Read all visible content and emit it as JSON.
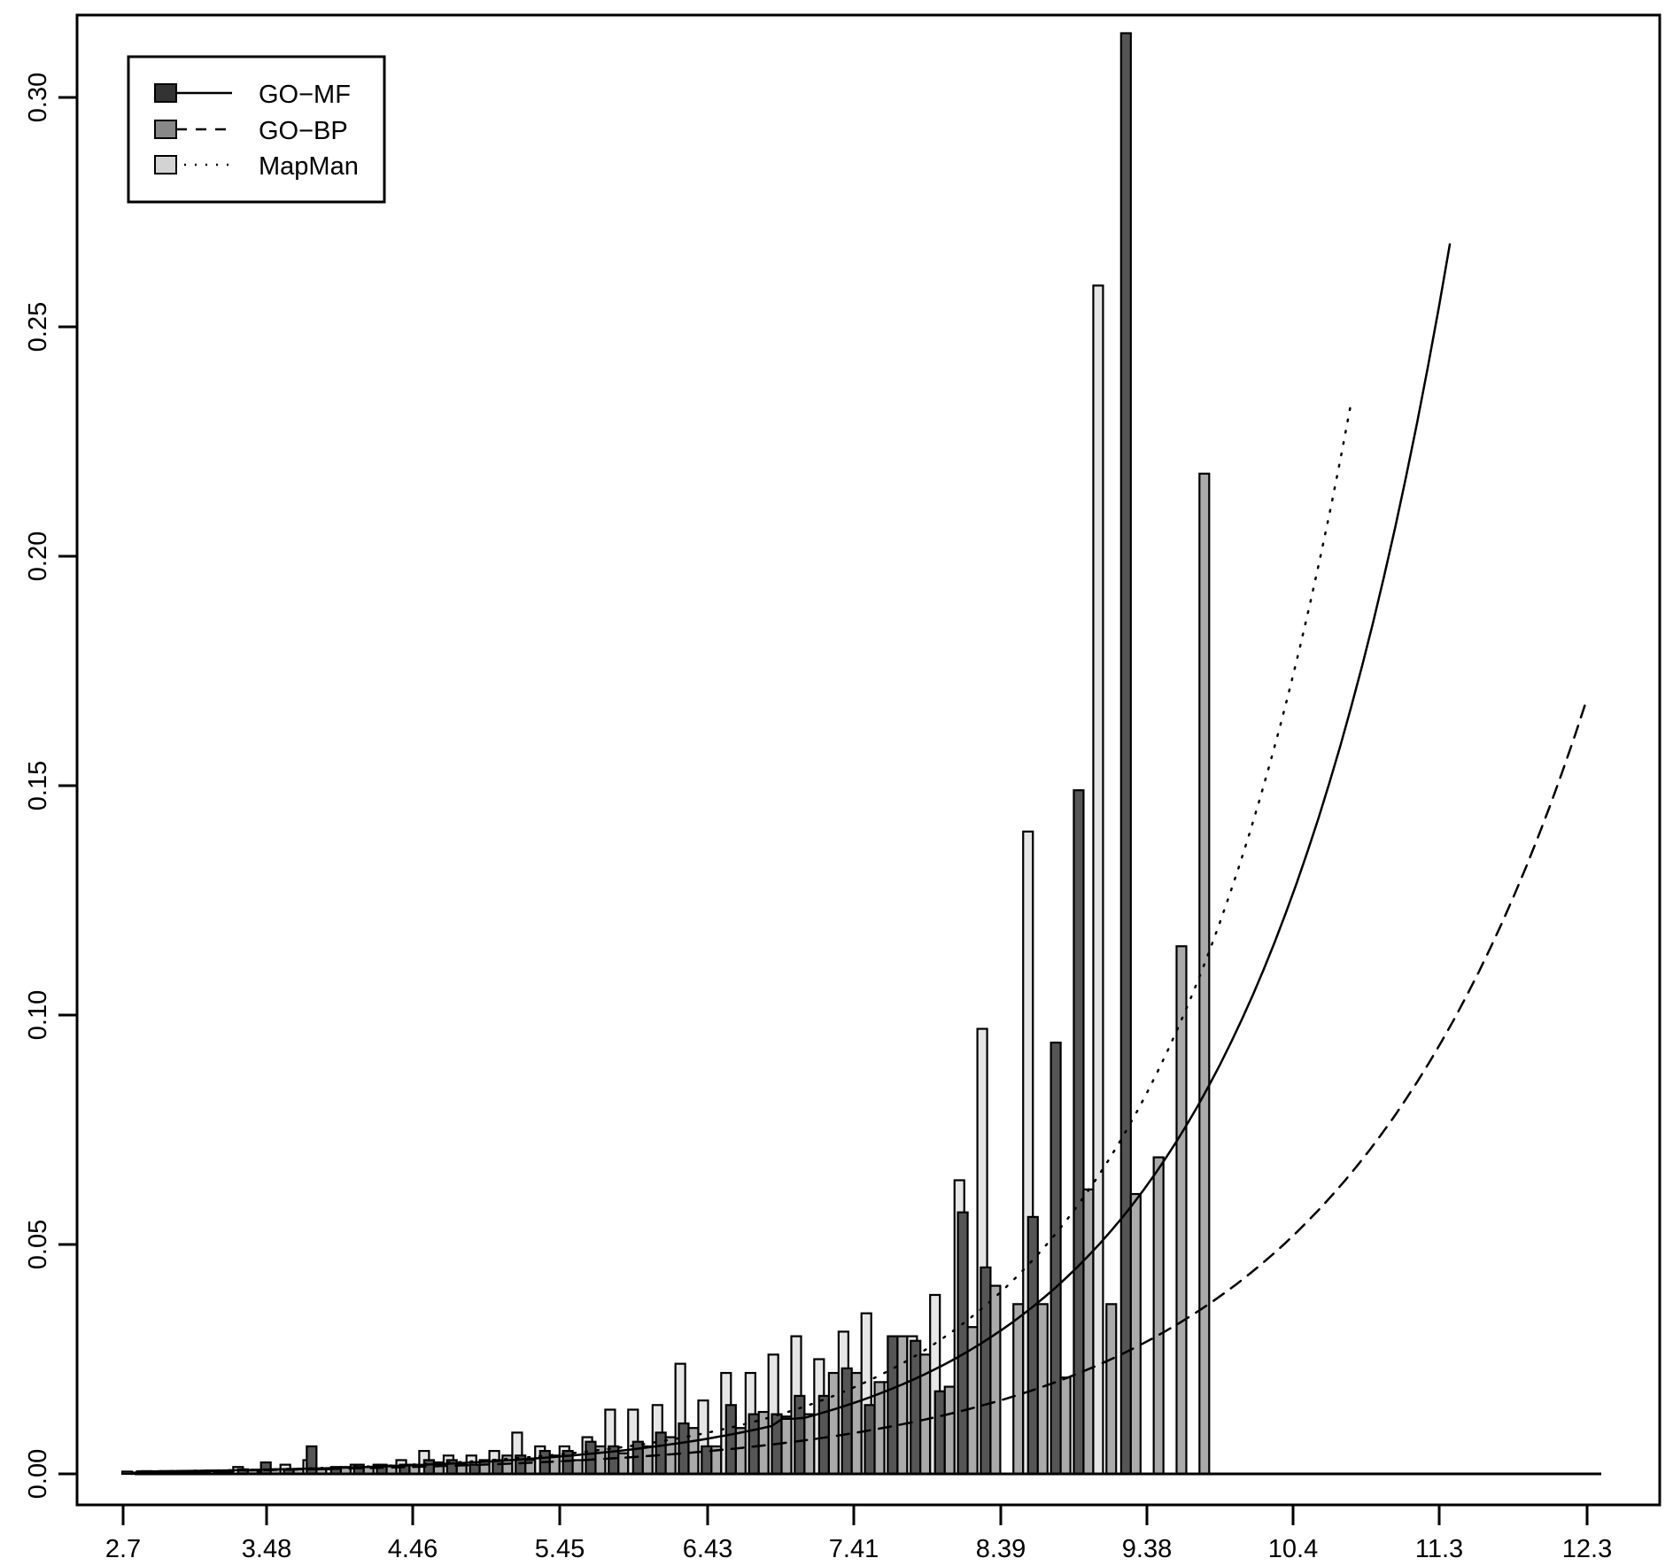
{
  "chart_data": {
    "type": "bar",
    "title": "",
    "xlabel": "",
    "ylabel": "",
    "ylim": [
      0,
      0.32
    ],
    "grid": false,
    "legend_position": "top-left",
    "x_tick_labels": [
      "2.7",
      "3.48",
      "4.46",
      "5.45",
      "6.43",
      "7.41",
      "8.39",
      "9.38",
      "10.4",
      "11.3",
      "12.3"
    ],
    "y_tick_labels": [
      "0.00",
      "0.05",
      "0.10",
      "0.15",
      "0.20",
      "0.25",
      "0.30"
    ],
    "y_ticks": [
      0.0,
      0.05,
      0.1,
      0.15,
      0.2,
      0.25,
      0.3
    ],
    "colors": {
      "GO-MF": "#555555",
      "GO-BP": "#aaaaaa",
      "MapMan": "#e6e6e6"
    },
    "legend": [
      {
        "label": "GO−MF",
        "fill": "#555555",
        "line": "solid"
      },
      {
        "label": "GO−BP",
        "fill": "#aaaaaa",
        "line": "dashed"
      },
      {
        "label": "MapMan",
        "fill": "#e6e6e6",
        "line": "dotted"
      }
    ],
    "bins": [
      2.79,
      2.94,
      3.09,
      3.24,
      3.39,
      3.55,
      3.7,
      3.85,
      4.0,
      4.16,
      4.31,
      4.46,
      4.61,
      4.77,
      4.92,
      5.07,
      5.22,
      5.37,
      5.53,
      5.68,
      5.83,
      5.98,
      6.14,
      6.29,
      6.44,
      6.59,
      6.75,
      6.9,
      7.05,
      7.2,
      7.36,
      7.51,
      7.66,
      7.81,
      7.96,
      8.12,
      8.27,
      8.42,
      8.57,
      8.73,
      8.88,
      9.03,
      9.18,
      9.34,
      9.49,
      9.64,
      9.79,
      10.0,
      10.3,
      10.6,
      10.8,
      11.1,
      11.4,
      11.7,
      12.3
    ],
    "series": [
      {
        "name": "GO-MF",
        "values": [
          0.0005,
          0.0004,
          0.0003,
          0.0004,
          0.0005,
          0.001,
          0.0025,
          0.001,
          0.006,
          0.0015,
          0.002,
          0.002,
          0.002,
          0.003,
          0.003,
          0.002,
          0.003,
          0.004,
          0.005,
          0.005,
          0.007,
          0.006,
          0.007,
          0.009,
          0.011,
          0.006,
          0.015,
          0.013,
          0.013,
          0.017,
          0.017,
          0.023,
          0.015,
          0.03,
          0.029,
          0.018,
          0.057,
          0.045,
          0.0,
          0.056,
          0.094,
          0.149,
          0.0,
          0.314,
          0.0,
          0.0,
          0.0,
          0.0,
          0.0,
          0.0,
          0.0,
          0.0,
          0.0,
          0.0,
          0.0
        ]
      },
      {
        "name": "GO-BP",
        "values": [
          0.0003,
          0.0003,
          0.0004,
          0.0003,
          0.0003,
          0.0008,
          0.001,
          0.001,
          0.001,
          0.0015,
          0.0015,
          0.0018,
          0.002,
          0.0025,
          0.002,
          0.003,
          0.004,
          0.003,
          0.004,
          0.003,
          0.006,
          0.0045,
          0.006,
          0.008,
          0.01,
          0.006,
          0.01,
          0.0135,
          0.0125,
          0.013,
          0.022,
          0.022,
          0.02,
          0.03,
          0.026,
          0.019,
          0.032,
          0.041,
          0.037,
          0.037,
          0.021,
          0.062,
          0.037,
          0.061,
          0.069,
          0.115,
          0.218,
          0,
          0,
          0,
          0,
          0,
          0,
          0,
          0
        ]
      },
      {
        "name": "MapMan",
        "values": [
          0.0006,
          0.0005,
          0.0004,
          0.0006,
          0.0015,
          0.0005,
          0.002,
          0.003,
          0.001,
          0.002,
          0.002,
          0.003,
          0.005,
          0.004,
          0.004,
          0.005,
          0.009,
          0.006,
          0.006,
          0.008,
          0.014,
          0.014,
          0.015,
          0.024,
          0.016,
          0.022,
          0.022,
          0.026,
          0.03,
          0.025,
          0.031,
          0.035,
          0.02,
          0.03,
          0.039,
          0.064,
          0.097,
          0.0,
          0.14,
          0.0,
          0.0,
          0.259,
          0.0,
          0,
          0,
          0,
          0,
          0,
          0,
          0,
          0,
          0,
          0,
          0,
          0
        ]
      }
    ],
    "trend_lines": [
      {
        "name": "GO-MF",
        "style": "solid",
        "x_range": [
          2.79,
          11.4
        ],
        "end_value": 0.268
      },
      {
        "name": "GO-BP",
        "style": "dashed",
        "x_range": [
          2.79,
          12.3
        ],
        "end_value": 0.169
      },
      {
        "name": "MapMan",
        "style": "dotted",
        "x_range": [
          2.79,
          10.75
        ],
        "end_value": 0.233
      }
    ]
  }
}
